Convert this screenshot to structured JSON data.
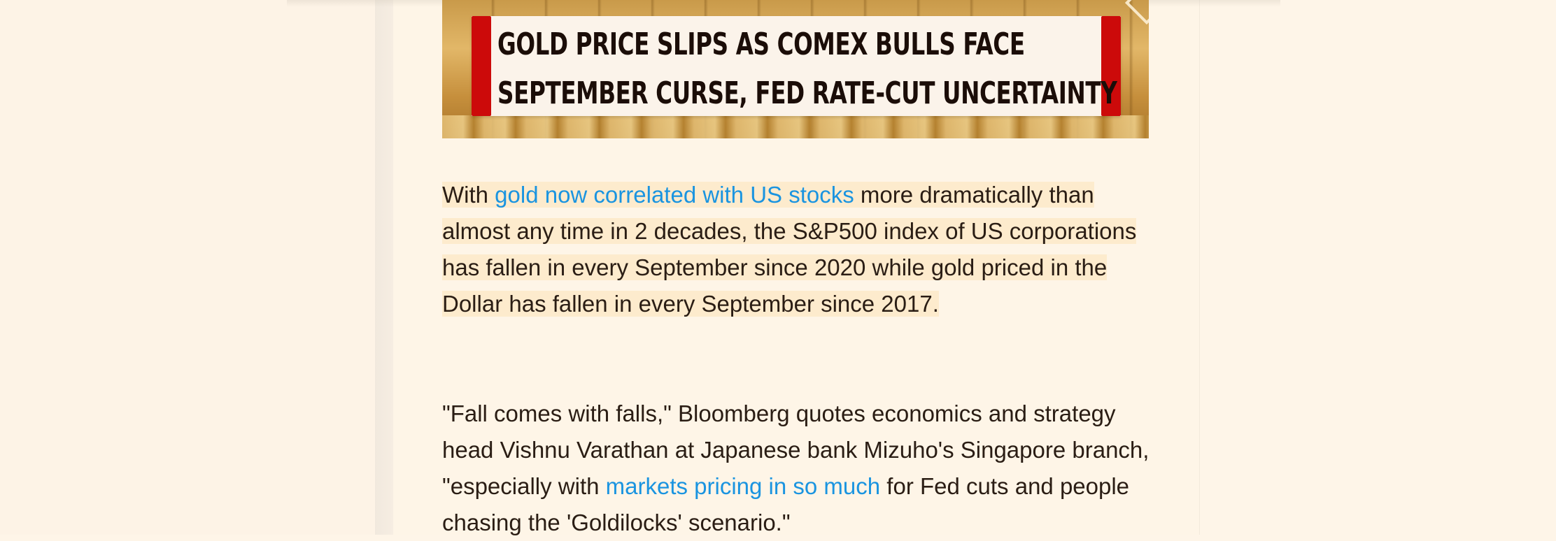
{
  "hero": {
    "headline_line1": "GOLD PRICE SLIPS AS COMEX BULLS FACE",
    "headline_line2": "SEPTEMBER CURSE, FED RATE-CUT UNCERTAINTY"
  },
  "paragraph1": {
    "lead": "With ",
    "link_text": "gold now correlated with US stocks",
    "rest": " more dramatically than almost any time in 2 decades, the S&P500 index of US corporations has fallen in every September since 2020 while gold priced in the Dollar has fallen in every September since 2017."
  },
  "paragraph2": {
    "lead": "\"Fall comes with falls,\" Bloomberg quotes economics and strategy head Vishnu Varathan at Japanese bank Mizuho's Singapore branch, \"especially with ",
    "link_text": "markets pricing in so much",
    "rest": " for Fed cuts and people chasing the 'Goldilocks' scenario.\""
  },
  "colors": {
    "page_background": "#fef5e8",
    "link": "#1a94e0",
    "highlight": "#fdebcd",
    "banner_red": "#cc0a0a",
    "text": "#2a1d14"
  }
}
